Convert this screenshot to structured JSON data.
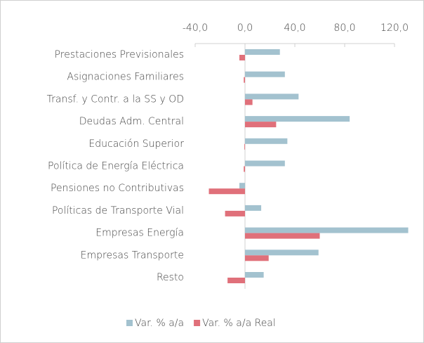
{
  "chart_data": {
    "type": "hbar",
    "categories": [
      "Prestaciones Previsionales",
      "Asignaciones Familiares",
      "Transf. y Contr. a la SS y OD",
      "Deudas Adm. Central",
      "Educación Superior",
      "Política de Energía Eléctrica",
      "Pensiones no Contributivas",
      "Políticas de Transporte Vial",
      "Empresas Energía",
      "Empresas Transporte",
      "Resto"
    ],
    "series": [
      {
        "name": "Var.  % a/a",
        "color": "#a3c2cf",
        "values": [
          28,
          32,
          43,
          84,
          34,
          32,
          -4.5,
          13,
          131,
          59,
          15
        ]
      },
      {
        "name": "Var. % a/a Real",
        "color": "#e0707a",
        "values": [
          -4.5,
          -1,
          6,
          25,
          -0.5,
          -1,
          -29,
          -16,
          60,
          19,
          -14
        ]
      }
    ],
    "xlim": [
      -40,
      140
    ],
    "xticks": [
      {
        "value": -40,
        "label": "-40,0"
      },
      {
        "value": 0,
        "label": "0,0"
      },
      {
        "value": 40,
        "label": "40,0"
      },
      {
        "value": 80,
        "label": "80,0"
      },
      {
        "value": 120,
        "label": "120,0"
      }
    ],
    "legend": "bottom"
  }
}
